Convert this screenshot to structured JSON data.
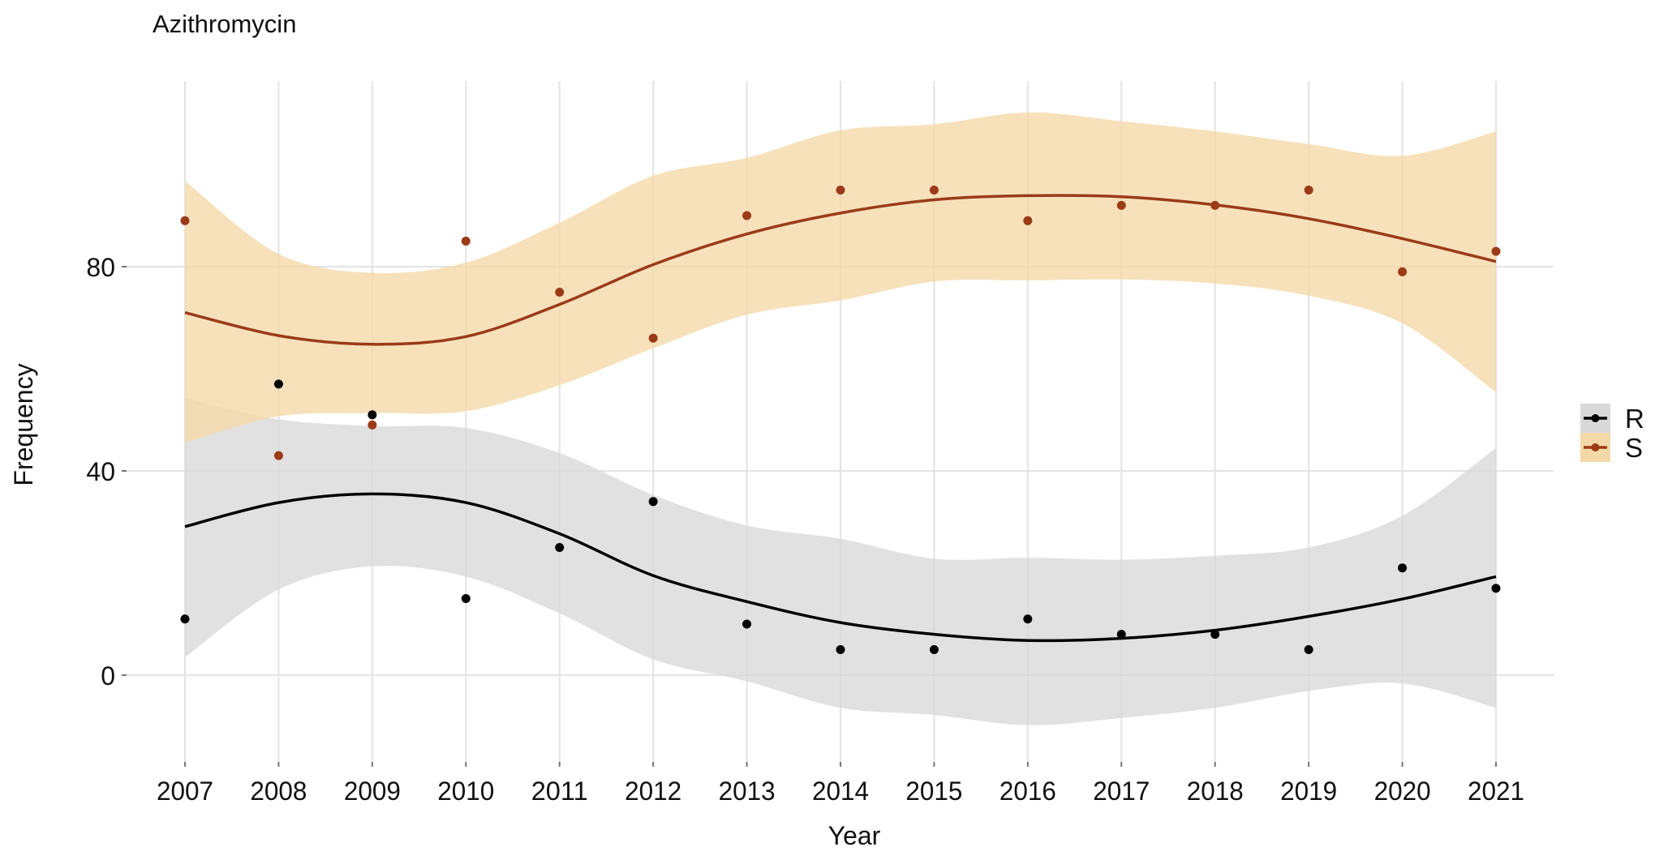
{
  "chart_data": {
    "type": "line",
    "subtype": "scatter with loess smooth and confidence band",
    "title": "Azithromycin",
    "xlabel": "Year",
    "ylabel": "Frequency",
    "x": [
      2007,
      2008,
      2009,
      2010,
      2011,
      2012,
      2013,
      2014,
      2015,
      2016,
      2017,
      2018,
      2019,
      2020,
      2021
    ],
    "x_tick_labels": [
      "2007",
      "2008",
      "2009",
      "2010",
      "2011",
      "2012",
      "2013",
      "2014",
      "2015",
      "2016",
      "2017",
      "2018",
      "2019",
      "2020",
      "2021"
    ],
    "y_ticks": [
      0,
      40,
      80
    ],
    "y_tick_labels": [
      "0",
      "40",
      "80"
    ],
    "xlim": [
      2006.5,
      2021.6
    ],
    "ylim": [
      -19,
      116
    ],
    "grid": true,
    "legend": {
      "position": "right",
      "entries": [
        "R",
        "S"
      ]
    },
    "series": [
      {
        "name": "R",
        "line_color": "#000000",
        "point_color": "#000000",
        "band_color": "#d9d9d9",
        "points": [
          11,
          57,
          51,
          15,
          25,
          34,
          10,
          5,
          5,
          11,
          8,
          8,
          5,
          21,
          17
        ],
        "smooth": [
          29.1,
          33.8,
          35.5,
          33.8,
          27.7,
          19.5,
          14.4,
          10.3,
          8.0,
          6.8,
          7.2,
          8.8,
          11.5,
          14.9,
          19.3
        ],
        "band_upper": [
          54.2,
          50.1,
          48.8,
          48.4,
          43.5,
          35.3,
          29.3,
          26.7,
          22.8,
          23.0,
          22.6,
          23.4,
          25.0,
          31.2,
          44.5
        ],
        "band_lower": [
          3.5,
          16.8,
          21.3,
          19.3,
          12.1,
          3.1,
          -1.2,
          -6.4,
          -7.8,
          -9.8,
          -8.4,
          -6.4,
          -3.1,
          -1.6,
          -6.4
        ]
      },
      {
        "name": "S",
        "line_color": "#9b3a17",
        "point_color": "#9b3a17",
        "band_color": "#f3d9a8",
        "points": [
          89,
          43,
          49,
          85,
          75,
          66,
          90,
          95,
          95,
          89,
          92,
          92,
          95,
          79,
          83
        ],
        "smooth": [
          71.0,
          66.5,
          64.8,
          66.3,
          72.6,
          80.4,
          86.4,
          90.5,
          93.1,
          93.9,
          93.7,
          92.1,
          89.4,
          85.5,
          81.0
        ],
        "band_upper": [
          96.8,
          82.5,
          78.8,
          80.8,
          88.6,
          97.8,
          101.3,
          106.7,
          107.9,
          110.2,
          108.5,
          106.5,
          104.0,
          101.7,
          106.5
        ],
        "band_lower": [
          45.5,
          50.7,
          51.3,
          51.7,
          56.8,
          64.0,
          70.6,
          73.4,
          77.1,
          77.3,
          77.5,
          76.7,
          74.3,
          68.9,
          55.4
        ]
      }
    ]
  }
}
